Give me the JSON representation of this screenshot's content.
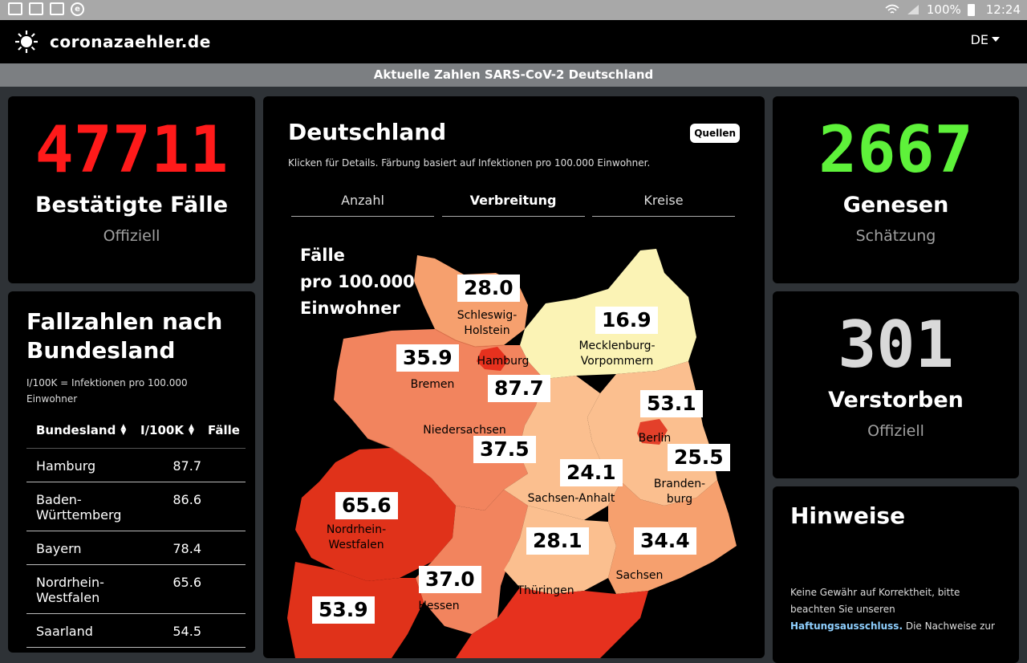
{
  "statusbar": {
    "battery": "100%",
    "time": "12:24"
  },
  "nav": {
    "brand": "coronazaehler.de",
    "lang": "DE"
  },
  "subheader": "Aktuelle Zahlen SARS-CoV-2 Deutschland",
  "confirmed": {
    "value": "47711",
    "label": "Bestätigte Fälle",
    "sub": "Offiziell",
    "color": "#ff1a1a"
  },
  "recovered": {
    "value": "2667",
    "label": "Genesen",
    "sub": "Schätzung",
    "color": "#5ef23a"
  },
  "deaths": {
    "value": "301",
    "label": "Verstorben",
    "sub": "Offiziell",
    "color": "#d9d9d9"
  },
  "states_card": {
    "title_line1": "Fallzahlen nach",
    "title_line2": "Bundesland",
    "note_line1": "I/100K = Infektionen pro 100.000",
    "note_line2": "Einwohner",
    "columns": [
      "Bundesland",
      "I/100K",
      "Fälle"
    ],
    "rows": [
      {
        "state": "Hamburg",
        "state2": "",
        "value": "87.7"
      },
      {
        "state": "Baden-",
        "state2": "Württemberg",
        "value": "86.6"
      },
      {
        "state": "Bayern",
        "state2": "",
        "value": "78.4"
      },
      {
        "state": "Nordrhein-",
        "state2": "Westfalen",
        "value": "65.6"
      },
      {
        "state": "Saarland",
        "state2": "",
        "value": "54.5"
      }
    ]
  },
  "map_card": {
    "title": "Deutschland",
    "subtitle": "Klicken für Details. Färbung basiert auf Infektionen pro 100.000 Einwohner.",
    "sources_button": "Quellen",
    "tabs": [
      "Anzahl",
      "Verbreitung",
      "Kreise"
    ],
    "active_tab": "Verbreitung",
    "legend_line1": "Fälle",
    "legend_line2": "pro 100.000",
    "legend_line3": "Einwohner",
    "regions": {
      "sh": {
        "name1": "Schleswig-",
        "name2": "Holstein",
        "value": "28.0"
      },
      "mv": {
        "name1": "Mecklenburg-",
        "name2": "Vorpommern",
        "value": "16.9"
      },
      "hb": {
        "name1": "Bremen",
        "value": "35.9"
      },
      "hh": {
        "name1": "Hamburg",
        "value": "87.7"
      },
      "ni": {
        "name1": "Niedersachsen",
        "value": "37.5"
      },
      "be": {
        "name1": "Berlin",
        "value": "53.1"
      },
      "bb": {
        "name1": "Branden-",
        "name2": "burg",
        "value": "25.5"
      },
      "st": {
        "name1": "Sachsen-Anhalt",
        "value": "24.1"
      },
      "nw": {
        "name1": "Nordrhein-",
        "name2": "Westfalen",
        "value": "65.6"
      },
      "th": {
        "name1": "Thüringen",
        "value": "28.1"
      },
      "sn": {
        "name1": "Sachsen",
        "value": "34.4"
      },
      "he": {
        "name1": "Hessen",
        "value": "37.0"
      },
      "rp": {
        "value": "53.9"
      }
    }
  },
  "notes_card": {
    "title": "Hinweise",
    "text1": "Keine Gewähr auf Korrektheit, bitte",
    "text2": "beachten Sie unseren",
    "link": "Haftungsausschluss.",
    "text3": "Die Nachweise zur"
  }
}
